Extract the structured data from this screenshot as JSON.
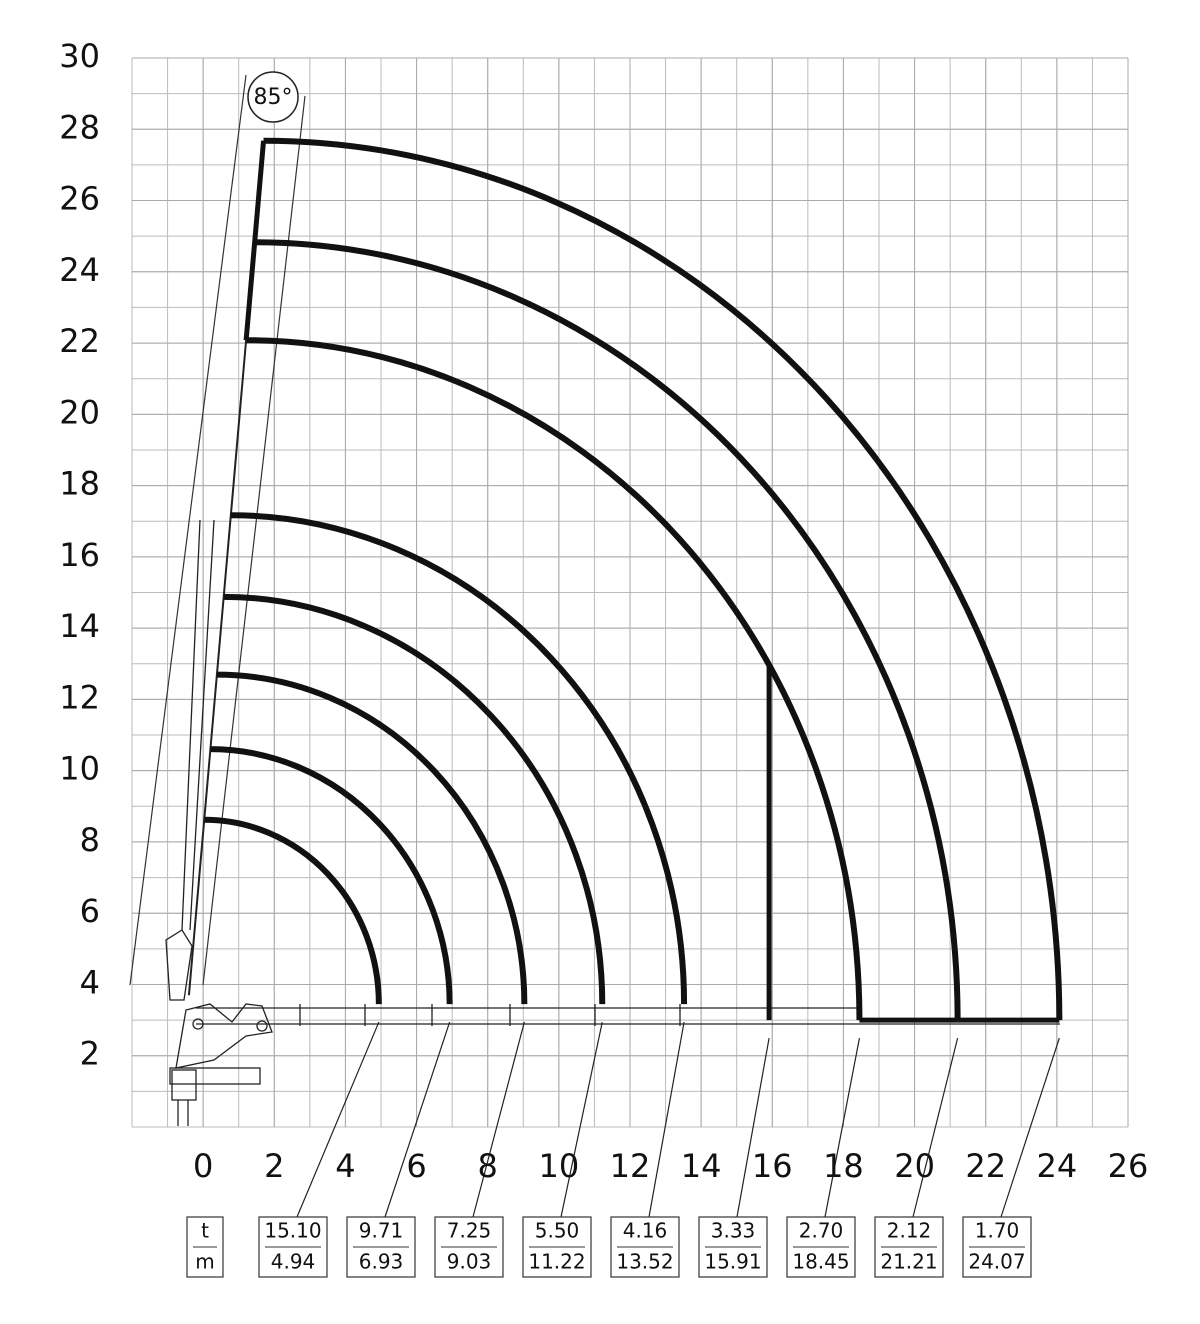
{
  "load_chart": {
    "type": "crane-load-chart",
    "boom_angle": {
      "value": 85,
      "label": "85°"
    },
    "xlim": [
      -2,
      26
    ],
    "ylim": [
      0,
      30
    ],
    "xticks": [
      0,
      2,
      4,
      6,
      8,
      10,
      12,
      14,
      16,
      18,
      20,
      22,
      24,
      26
    ],
    "yticks": [
      2,
      4,
      6,
      8,
      10,
      12,
      14,
      16,
      18,
      20,
      22,
      24,
      26,
      28,
      30
    ],
    "grid": true,
    "units": {
      "load": "t",
      "reach": "m"
    },
    "columns": [
      {
        "load": {
          "value": 15.1,
          "label": "15.10"
        },
        "reach": 4.94
      },
      {
        "load": 9.71,
        "reach": 6.93
      },
      {
        "load": 7.25,
        "reach": 9.03
      },
      {
        "load": {
          "value": 5.5,
          "label": "5.50"
        },
        "reach": 11.22
      },
      {
        "load": 4.16,
        "reach": 13.52
      },
      {
        "load": 3.33,
        "reach": 15.91,
        "style": "vertical-cut"
      },
      {
        "load": {
          "value": 2.7,
          "label": "2.70"
        },
        "reach": 18.45
      },
      {
        "load": 2.12,
        "reach": 21.21
      },
      {
        "load": {
          "value": 1.7,
          "label": "1.70"
        },
        "reach": 24.07
      }
    ]
  }
}
